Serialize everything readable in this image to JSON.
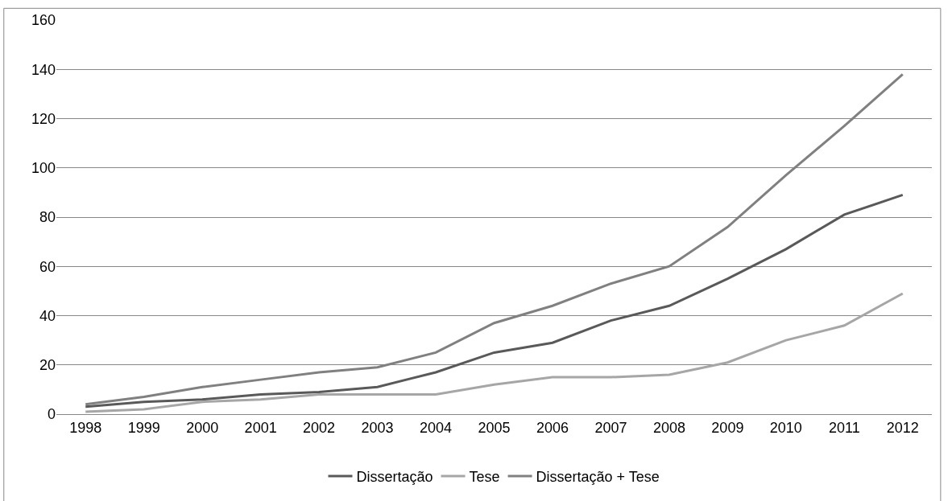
{
  "chart_data": {
    "type": "line",
    "categories": [
      "1998",
      "1999",
      "2000",
      "2001",
      "2002",
      "2003",
      "2004",
      "2005",
      "2006",
      "2007",
      "2008",
      "2009",
      "2010",
      "2011",
      "2012"
    ],
    "series": [
      {
        "name": "Dissertação",
        "color": "#595959",
        "values": [
          3,
          5,
          6,
          8,
          9,
          11,
          17,
          25,
          29,
          38,
          44,
          55,
          67,
          81,
          89
        ]
      },
      {
        "name": "Tese",
        "color": "#a6a6a6",
        "values": [
          1,
          2,
          5,
          6,
          8,
          8,
          8,
          12,
          15,
          15,
          16,
          21,
          30,
          36,
          49
        ]
      },
      {
        "name": "Dissertação + Tese",
        "color": "#808080",
        "values": [
          4,
          7,
          11,
          14,
          17,
          19,
          25,
          37,
          44,
          53,
          60,
          76,
          97,
          117,
          138
        ]
      }
    ],
    "ylim": [
      0,
      160
    ],
    "yticks": [
      0,
      20,
      40,
      60,
      80,
      100,
      120,
      140,
      160
    ],
    "grid": "y",
    "legend": "bottom",
    "marker": "none",
    "line_style": "solid"
  }
}
